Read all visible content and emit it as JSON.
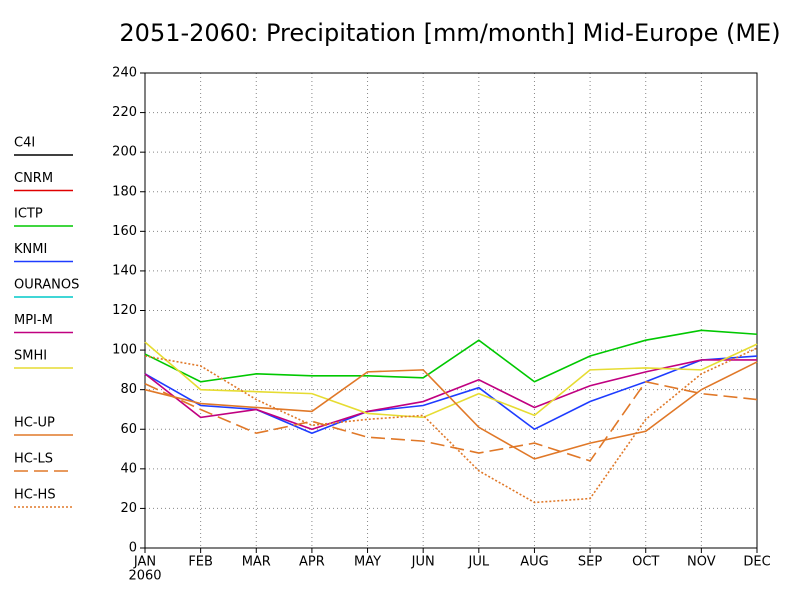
{
  "chart_data": {
    "type": "line",
    "title": "2051-2060: Precipitation [mm/month] Mid-Europe (ME)",
    "categories": [
      "JAN",
      "FEB",
      "MAR",
      "APR",
      "MAY",
      "JUN",
      "JUL",
      "AUG",
      "SEP",
      "OCT",
      "NOV",
      "DEC"
    ],
    "x_sublabel": "2060",
    "ylim": [
      0,
      240
    ],
    "yticks": [
      0,
      20,
      40,
      60,
      80,
      100,
      120,
      140,
      160,
      180,
      200,
      220,
      240
    ],
    "grid": true,
    "series": [
      {
        "name": "C4I",
        "color": "#000000",
        "dash": "solid",
        "values": [
          null,
          null,
          null,
          null,
          null,
          null,
          null,
          null,
          null,
          null,
          null,
          null
        ]
      },
      {
        "name": "CNRM",
        "color": "#e00000",
        "dash": "solid",
        "values": [
          null,
          null,
          null,
          null,
          null,
          null,
          null,
          null,
          null,
          null,
          null,
          null
        ]
      },
      {
        "name": "ICTP",
        "color": "#00c800",
        "dash": "solid",
        "values": [
          98,
          84,
          88,
          87,
          87,
          86,
          105,
          84,
          97,
          105,
          110,
          108
        ]
      },
      {
        "name": "KNMI",
        "color": "#1e3cff",
        "dash": "solid",
        "values": [
          88,
          72,
          70,
          58,
          69,
          72,
          81,
          60,
          74,
          84,
          95,
          97
        ]
      },
      {
        "name": "OURANOS",
        "color": "#00c8c8",
        "dash": "solid",
        "values": [
          null,
          null,
          null,
          null,
          null,
          null,
          null,
          null,
          null,
          null,
          null,
          null
        ]
      },
      {
        "name": "MPI-M",
        "color": "#c00080",
        "dash": "solid",
        "values": [
          88,
          66,
          70,
          60,
          69,
          74,
          85,
          71,
          82,
          89,
          95,
          95
        ]
      },
      {
        "name": "SMHI",
        "color": "#e6dc32",
        "dash": "solid",
        "values": [
          104,
          80,
          79,
          78,
          68,
          66,
          78,
          67,
          90,
          91,
          90,
          103
        ]
      },
      {
        "name": "HC-UP",
        "color": "#e07828",
        "dash": "solid",
        "values": [
          80,
          73,
          71,
          69,
          89,
          90,
          61,
          45,
          53,
          59,
          80,
          94
        ]
      },
      {
        "name": "HC-LS",
        "color": "#e07828",
        "dash": "dashed",
        "values": [
          83,
          70,
          58,
          64,
          56,
          54,
          48,
          53,
          44,
          84,
          78,
          75
        ]
      },
      {
        "name": "HC-HS",
        "color": "#e07828",
        "dash": "dotted",
        "values": [
          97,
          92,
          75,
          62,
          65,
          67,
          39,
          23,
          25,
          65,
          88,
          101
        ]
      }
    ]
  }
}
